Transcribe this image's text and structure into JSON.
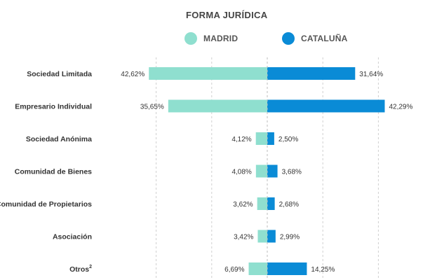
{
  "chart_data": {
    "type": "bar",
    "title": "FORMA JURÍDICA",
    "categories": [
      "Sociedad Limitada",
      "Empresario Individual",
      "Sociedad Anónima",
      "Comunidad de Bienes",
      "Comunidad de Propietarios",
      "Asociación",
      "Otros"
    ],
    "category_superscripts": [
      "",
      "",
      "",
      "",
      "",
      "",
      "2"
    ],
    "series": [
      {
        "name": "MADRID",
        "values": [
          42.62,
          35.65,
          4.12,
          4.08,
          3.62,
          3.42,
          6.69
        ],
        "labels": [
          "42,62%",
          "35,65%",
          "4,12%",
          "4,08%",
          "3,62%",
          "3,42%",
          "6,69%"
        ],
        "color": "#8fdfcf"
      },
      {
        "name": "CATALUÑA",
        "values": [
          31.64,
          42.29,
          2.5,
          3.68,
          2.68,
          2.99,
          14.25
        ],
        "labels": [
          "31,64%",
          "42,29%",
          "2,50%",
          "3,68%",
          "2,68%",
          "2,99%",
          "14,25%"
        ],
        "color": "#0a8bd6"
      }
    ],
    "orientation": "horizontal-diverging",
    "grid": true,
    "legend_position": "top"
  }
}
